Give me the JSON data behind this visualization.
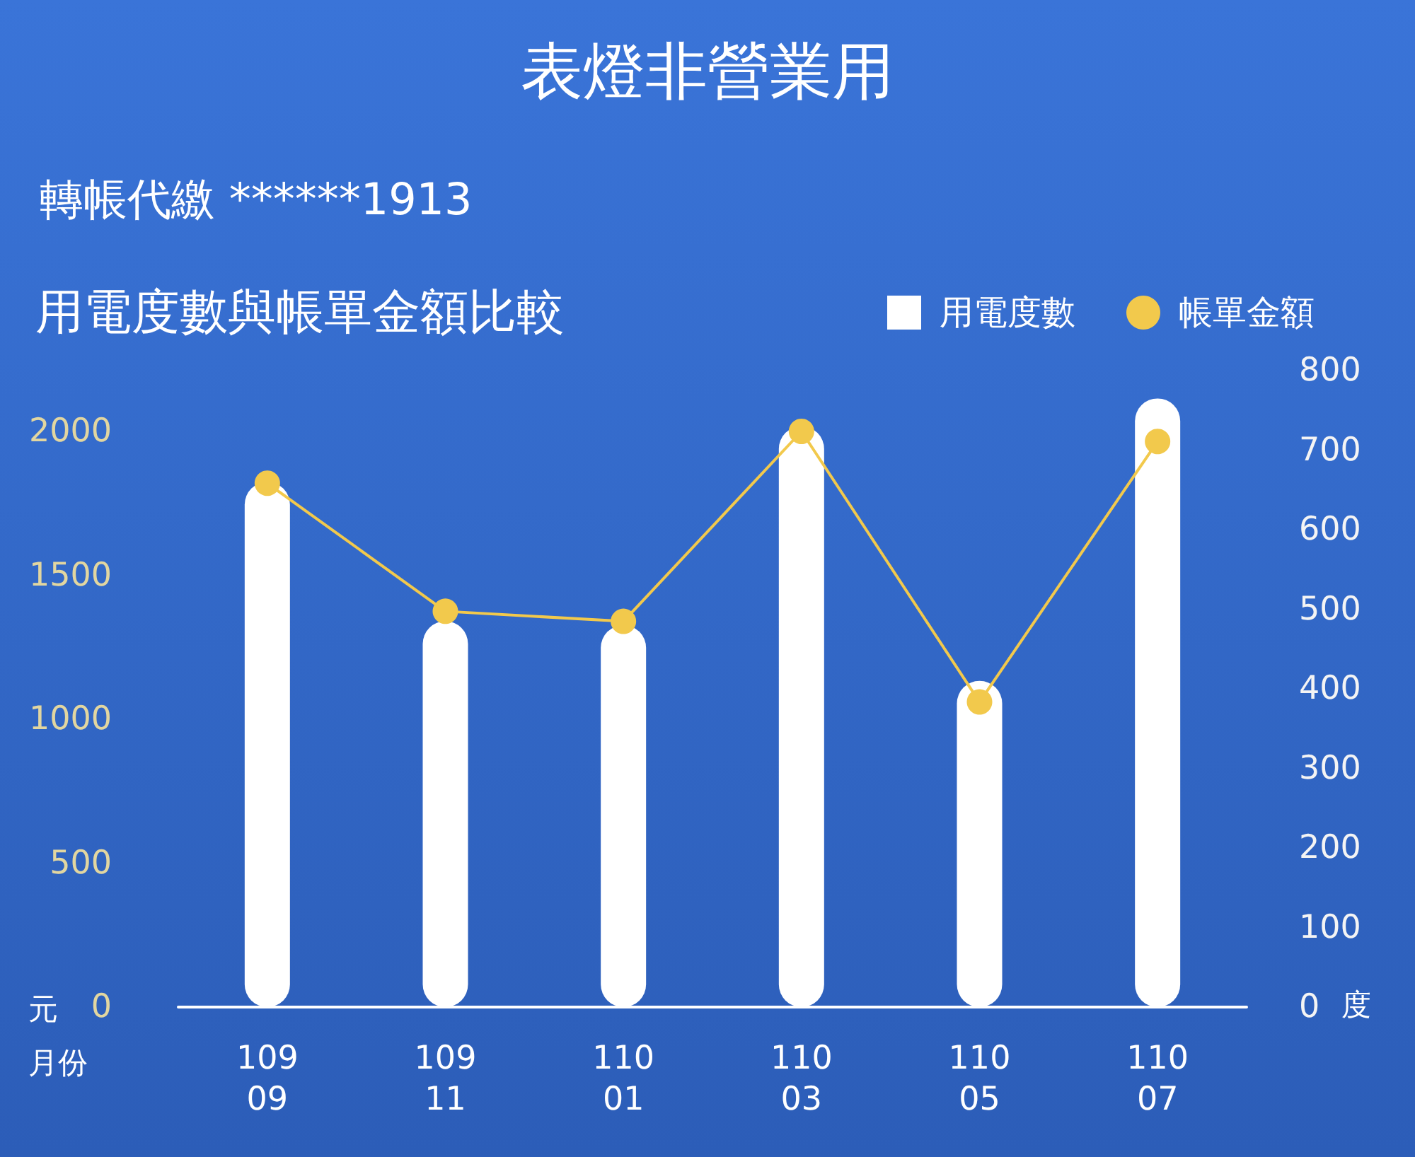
{
  "chart_data": {
    "type": "bar",
    "title": "表燈非營業用",
    "subtitle": "用電度數與帳單金額比較",
    "annotations": [
      "轉帳代繳 ******1913"
    ],
    "xlabel": "月份",
    "ylabel": "元",
    "y2label": "度",
    "categories": [
      "109\n09",
      "109\n11",
      "110\n01",
      "110\n03",
      "110\n05",
      "110\n07"
    ],
    "series": [
      {
        "name": "用電度數",
        "axis": "y2",
        "color": "#ffffff",
        "values": [
          660,
          485,
          480,
          730,
          410,
          765
        ]
      },
      {
        "name": "帳單金額",
        "type": "line",
        "color": "#f2c94c",
        "values": [
          1820,
          1375,
          1340,
          2000,
          1060,
          1965
        ]
      }
    ],
    "ylim": [
      0,
      2000
    ],
    "yticks": [
      0,
      500,
      1000,
      1500,
      2000
    ],
    "y2lim": [
      0,
      800
    ],
    "y2ticks": [
      0,
      100,
      200,
      300,
      400,
      500,
      600,
      700,
      800
    ],
    "legend": "top right",
    "marker": "circle"
  }
}
